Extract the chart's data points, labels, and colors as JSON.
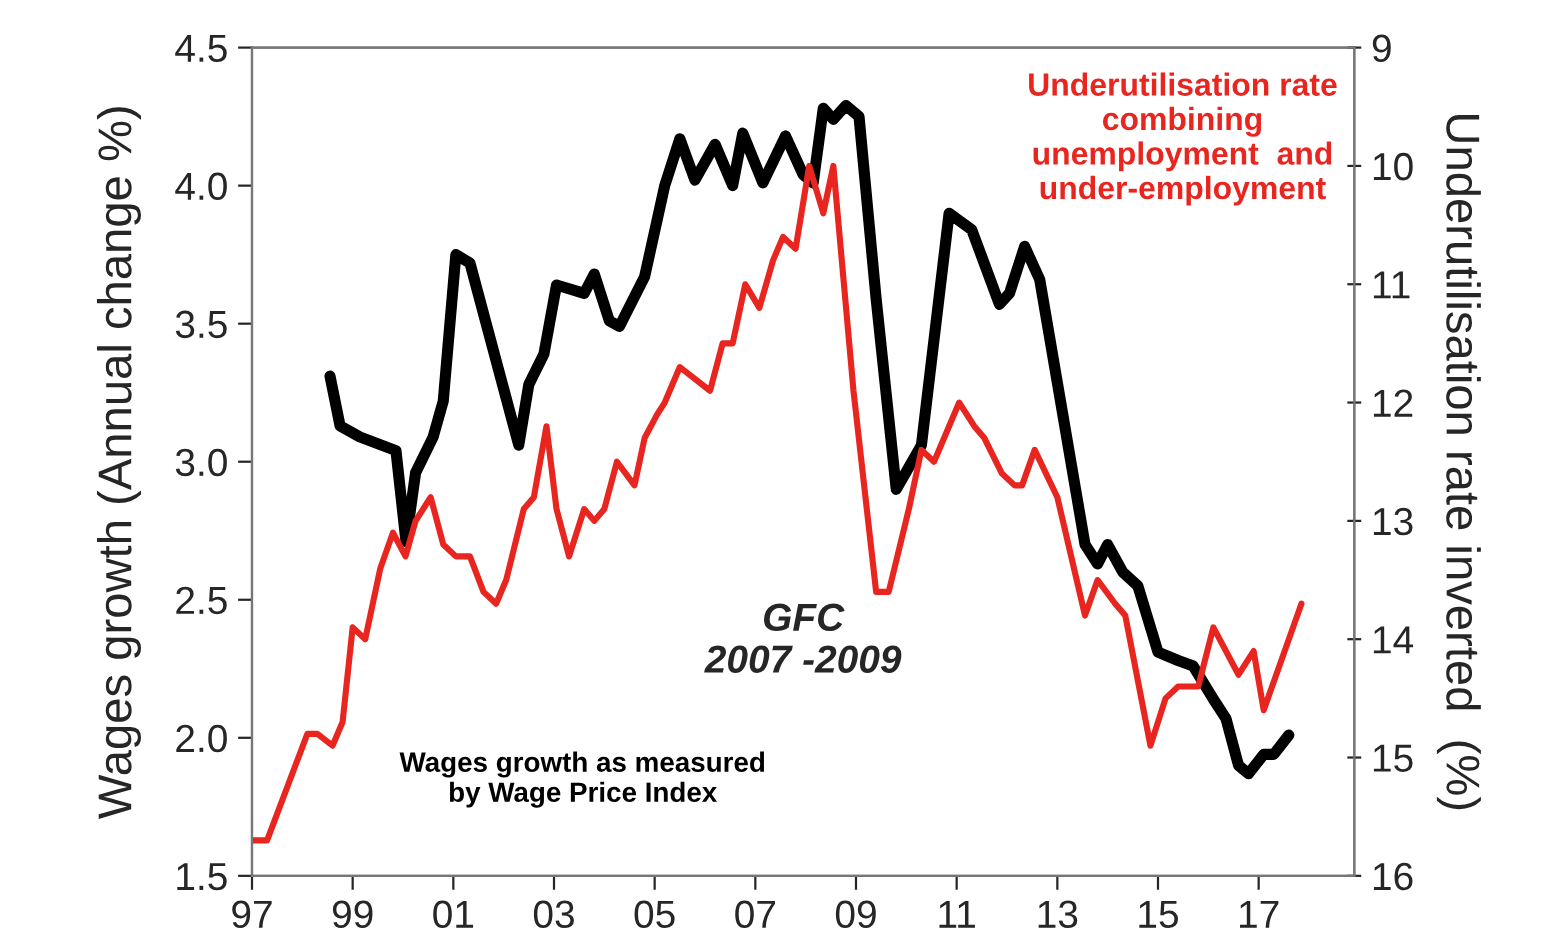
{
  "chart_data": {
    "type": "line",
    "xlabel": null,
    "ylabel": "Wages growth (Annual change %)",
    "y2label": "Underutilisation rate inverted  (%)",
    "xlim": [
      1997,
      2018.9
    ],
    "xticks": [
      {
        "value": 1997,
        "label": "97"
      },
      {
        "value": 1999,
        "label": "99"
      },
      {
        "value": 2001,
        "label": "01"
      },
      {
        "value": 2003,
        "label": "03"
      },
      {
        "value": 2005,
        "label": "05"
      },
      {
        "value": 2007,
        "label": "07"
      },
      {
        "value": 2009,
        "label": "09"
      },
      {
        "value": 2011,
        "label": "11"
      },
      {
        "value": 2013,
        "label": "13"
      },
      {
        "value": 2015,
        "label": "15"
      },
      {
        "value": 2017,
        "label": "17"
      }
    ],
    "ylim": [
      1.5,
      4.5
    ],
    "yticks": [
      {
        "value": 1.5,
        "label": "1.5"
      },
      {
        "value": 2.0,
        "label": "2.0"
      },
      {
        "value": 2.5,
        "label": "2.5"
      },
      {
        "value": 3.0,
        "label": "3.0"
      },
      {
        "value": 3.5,
        "label": "3.5"
      },
      {
        "value": 4.0,
        "label": "4.0"
      },
      {
        "value": 4.5,
        "label": "4.5"
      }
    ],
    "y2lim": [
      16,
      9
    ],
    "y2ticks": [
      9,
      10,
      11,
      12,
      13,
      14,
      15,
      16
    ],
    "grid": false,
    "legend": false,
    "marker": "none",
    "line_style": "solid",
    "annotations": [
      "GFC\n2007 -2009"
    ],
    "series": [
      {
        "name": "Underutilisation rate\ncombining\nunemployment  and\nunder-employment",
        "color": "#e8251f",
        "axis": "y2",
        "x": [
          1997.0,
          1997.3,
          1998.1,
          1998.3,
          1998.6,
          1998.8,
          1999.0,
          1999.25,
          1999.55,
          1999.8,
          2000.05,
          2000.25,
          2000.55,
          2000.8,
          2001.05,
          2001.33,
          2001.6,
          2001.85,
          2002.05,
          2002.4,
          2002.6,
          2002.85,
          2003.05,
          2003.3,
          2003.6,
          2003.8,
          2004.0,
          2004.25,
          2004.6,
          2004.8,
          2005.05,
          2005.2,
          2005.5,
          2006.1,
          2006.35,
          2006.55,
          2006.8,
          2007.08,
          2007.35,
          2007.55,
          2007.8,
          2008.07,
          2008.35,
          2008.55,
          2008.95,
          2009.4,
          2009.65,
          2010.05,
          2010.3,
          2010.55,
          2011.05,
          2011.35,
          2011.55,
          2011.9,
          2012.15,
          2012.3,
          2012.55,
          2013.0,
          2013.55,
          2013.8,
          2014.15,
          2014.35,
          2014.85,
          2015.15,
          2015.4,
          2015.8,
          2016.1,
          2016.6,
          2016.9,
          2017.1,
          2017.85
        ],
        "values": [
          15.7,
          15.7,
          14.8,
          14.8,
          14.9,
          14.7,
          13.9,
          14.0,
          13.4,
          13.1,
          13.3,
          13.0,
          12.8,
          13.2,
          13.3,
          13.3,
          13.6,
          13.7,
          13.5,
          12.9,
          12.8,
          12.2,
          12.9,
          13.3,
          12.9,
          13.0,
          12.9,
          12.5,
          12.7,
          12.3,
          12.1,
          12.0,
          11.7,
          11.9,
          11.5,
          11.5,
          11.0,
          11.2,
          10.8,
          10.6,
          10.7,
          10.0,
          10.4,
          10.0,
          11.9,
          13.6,
          13.6,
          12.9,
          12.4,
          12.5,
          12.0,
          12.2,
          12.3,
          12.6,
          12.7,
          12.7,
          12.4,
          12.8,
          13.8,
          13.5,
          13.7,
          13.8,
          14.9,
          14.5,
          14.4,
          14.4,
          13.9,
          14.3,
          14.1,
          14.6,
          13.7
        ]
      },
      {
        "name": "Wages growth as measured\nby Wage Price Index",
        "color": "#000000",
        "x": [
          1998.55,
          1998.75,
          1999.14,
          1999.86,
          2000.06,
          2000.25,
          2000.6,
          2000.8,
          2001.05,
          2001.33,
          2002.3,
          2002.5,
          2002.8,
          2003.05,
          2003.6,
          2003.8,
          2004.1,
          2004.3,
          2004.8,
          2005.2,
          2005.5,
          2005.8,
          2006.2,
          2006.55,
          2006.75,
          2007.15,
          2007.6,
          2007.95,
          2008.15,
          2008.35,
          2008.55,
          2008.8,
          2009.06,
          2009.4,
          2009.8,
          2010.3,
          2010.85,
          2011.3,
          2011.85,
          2012.05,
          2012.35,
          2012.65,
          2013.55,
          2013.8,
          2014.0,
          2014.3,
          2014.6,
          2015.0,
          2015.4,
          2015.7,
          2016.1,
          2016.35,
          2016.6,
          2016.8,
          2017.1,
          2017.3,
          2017.6
        ],
        "values": [
          3.31,
          3.13,
          3.09,
          3.04,
          2.71,
          2.96,
          3.09,
          3.22,
          3.75,
          3.72,
          3.06,
          3.28,
          3.39,
          3.64,
          3.61,
          3.68,
          3.51,
          3.49,
          3.67,
          4.0,
          4.17,
          4.02,
          4.15,
          4.0,
          4.19,
          4.01,
          4.18,
          4.04,
          4.01,
          4.28,
          4.24,
          4.29,
          4.25,
          3.59,
          2.9,
          3.06,
          3.9,
          3.84,
          3.57,
          3.61,
          3.78,
          3.66,
          2.7,
          2.63,
          2.7,
          2.6,
          2.55,
          2.31,
          2.28,
          2.26,
          2.14,
          2.07,
          1.9,
          1.87,
          1.94,
          1.94,
          2.01
        ]
      }
    ]
  }
}
